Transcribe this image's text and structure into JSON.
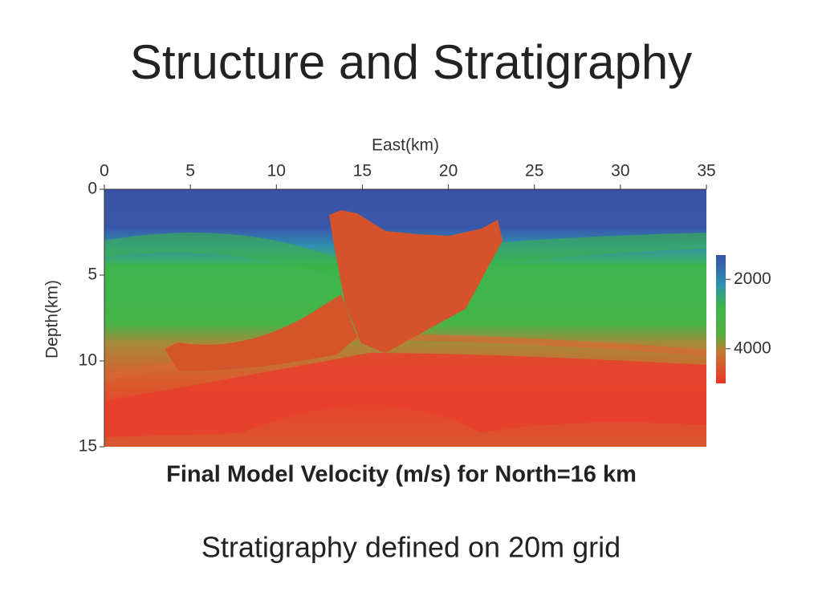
{
  "title": "Structure and Stratigraphy",
  "figure": {
    "x_label": "East(km)",
    "y_label": "Depth(km)",
    "xlim": [
      0,
      35
    ],
    "xticks": [
      0,
      5,
      10,
      15,
      20,
      25,
      30,
      35
    ],
    "ylim": [
      0,
      15
    ],
    "yticks": [
      0,
      5,
      10,
      15
    ],
    "colorbar_lim": [
      1300,
      5000
    ],
    "colorbar_ticks": [
      2000,
      4000
    ],
    "caption": "Final Model Velocity (m/s) for North=16 km"
  },
  "subtitle": "Stratigraphy defined on 20m grid"
}
